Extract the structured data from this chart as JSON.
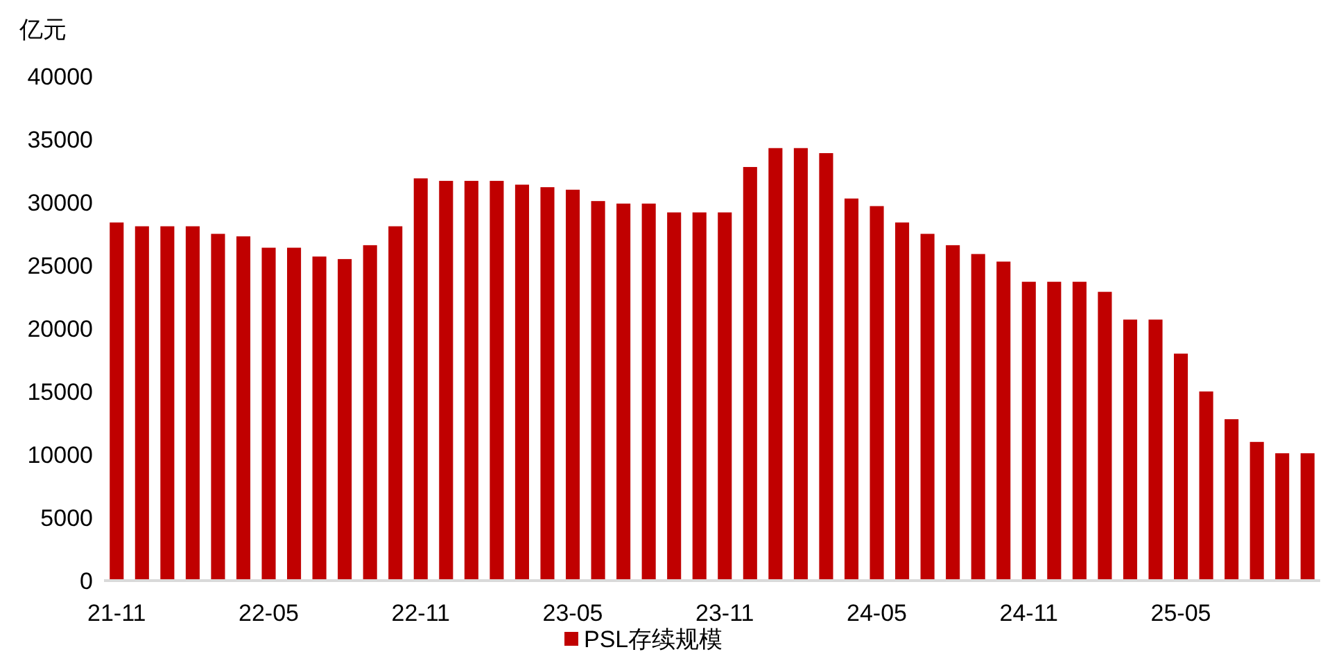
{
  "chart_data": {
    "type": "bar",
    "ylabel": "亿元",
    "categories": [
      "21-11",
      null,
      null,
      null,
      null,
      null,
      "22-05",
      null,
      null,
      null,
      null,
      null,
      "22-11",
      null,
      null,
      null,
      null,
      null,
      "23-05",
      null,
      null,
      null,
      null,
      null,
      "23-11",
      null,
      null,
      null,
      null,
      null,
      "24-05",
      null,
      null,
      null,
      null,
      null,
      "24-11",
      null,
      null,
      null,
      null,
      null,
      "25-05",
      null,
      null,
      null,
      null,
      null
    ],
    "series": [
      {
        "name": "PSL存续规模",
        "color": "#c00000",
        "values": [
          28400,
          28100,
          28100,
          28100,
          27500,
          27300,
          26400,
          26400,
          25700,
          25500,
          26600,
          28100,
          31900,
          31700,
          31700,
          31700,
          31400,
          31200,
          31000,
          30100,
          29900,
          29900,
          29200,
          29200,
          29200,
          32800,
          34300,
          34300,
          33900,
          30300,
          29700,
          28400,
          27500,
          26600,
          25900,
          25300,
          23700,
          23700,
          23700,
          22900,
          20700,
          20700,
          18000,
          15000,
          12800,
          11000,
          10100,
          10100
        ]
      }
    ],
    "ylim": [
      0,
      40000
    ],
    "yticks": [
      0,
      5000,
      10000,
      15000,
      20000,
      25000,
      30000,
      35000,
      40000
    ],
    "grid": false,
    "legend": "bottom"
  }
}
